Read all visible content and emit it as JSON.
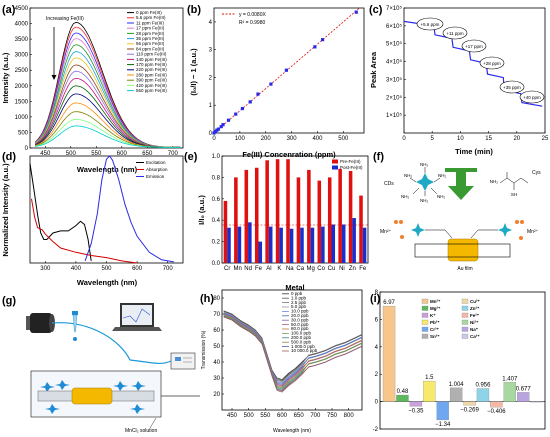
{
  "panels": {
    "a": {
      "label": "(a)",
      "note": "Increasing Fe(III)",
      "xlabel": "Wavelength (nm)",
      "ylabel": "Intensity (a.u.)"
    },
    "b": {
      "label": "(b)",
      "xlabel": "Fe(III) Concenration (ppm)",
      "ylabel": "(I₀/I) − 1 (a.u.)",
      "fit_eq": "y = 0.0080X",
      "r2": "R² = 0.9980",
      "fit_label": "y = 0.0080X"
    },
    "c": {
      "label": "(c)",
      "xlabel": "Time (min)",
      "ylabel": "Peak Area",
      "steps": [
        "+5.6 ppm",
        "+11 ppm",
        "+17 ppm",
        "+28 ppm",
        "+35 ppm",
        "+40 ppm"
      ]
    },
    "d": {
      "label": "(d)",
      "xlabel": "Wavelength (nm)",
      "ylabel": "Normalized Intensity (a.u.)"
    },
    "e": {
      "label": "(e)",
      "xlabel": "Metal",
      "ylabel": "I/I₀ (a.u.)"
    },
    "f": {
      "label": "(f)",
      "cds": "CDs",
      "cys": "Cys",
      "mn": "Mn²⁺",
      "film": "Au film",
      "nh2": "NH₂",
      "sh": "SH"
    },
    "g": {
      "label": "(g)",
      "solution": "MnCl₂ solution"
    },
    "h": {
      "label": "(h)",
      "xlabel": "Wavelength (nm)",
      "ylabel": "Transmission (%)"
    },
    "i": {
      "label": "(i)"
    }
  },
  "chart_data": [
    {
      "panel": "a",
      "type": "line",
      "xlim": [
        420,
        720
      ],
      "ylim": [
        0,
        4500
      ],
      "xticks": [
        450,
        500,
        550,
        600,
        650,
        700
      ],
      "yticks": [
        0,
        500,
        1000,
        1500,
        2000,
        2500,
        3000,
        3500,
        4000,
        4500
      ],
      "peak_nm": 510,
      "series": [
        {
          "name": "0 ppm Fe(III)",
          "peak": 4020,
          "color": "#000000"
        },
        {
          "name": "5.6 ppm Fe(III)",
          "peak": 3870,
          "color": "#ff2a2a"
        },
        {
          "name": "11 ppm Fe(III)",
          "peak": 3680,
          "color": "#2a2aff"
        },
        {
          "name": "17 ppm Fe(III)",
          "peak": 3500,
          "color": "#e07bd8"
        },
        {
          "name": "28 ppm Fe(III)",
          "peak": 3300,
          "color": "#1f9a1f"
        },
        {
          "name": "35 ppm Fe(III)",
          "peak": 3080,
          "color": "#1aa3e8"
        },
        {
          "name": "56 ppm Fe(III)",
          "peak": 2880,
          "color": "#f0c419"
        },
        {
          "name": "84 ppm Fe(III)",
          "peak": 2650,
          "color": "#8b4513"
        },
        {
          "name": "110 ppm Fe(III)",
          "peak": 2450,
          "color": "#9370db"
        },
        {
          "name": "140 ppm Fe(III)",
          "peak": 2220,
          "color": "#c71585"
        },
        {
          "name": "170 ppm Fe(III)",
          "peak": 1980,
          "color": "#006400"
        },
        {
          "name": "220 ppm Fe(III)",
          "peak": 1720,
          "color": "#000080"
        },
        {
          "name": "280 ppm Fe(III)",
          "peak": 1430,
          "color": "#ff8c00"
        },
        {
          "name": "390 ppm Fe(III)",
          "peak": 1150,
          "color": "#808000"
        },
        {
          "name": "420 ppm Fe(III)",
          "peak": 900,
          "color": "#7fff7f"
        },
        {
          "name": "550 ppm Fe(III)",
          "peak": 690,
          "color": "#00ced1"
        }
      ]
    },
    {
      "panel": "b",
      "type": "scatter",
      "xlim": [
        0,
        580
      ],
      "ylim": [
        0,
        4.5
      ],
      "xticks": [
        0,
        100,
        200,
        300,
        400,
        500
      ],
      "yticks": [
        0,
        1,
        2,
        3,
        4
      ],
      "x": [
        0,
        5.6,
        11,
        17,
        28,
        35,
        56,
        84,
        110,
        140,
        170,
        220,
        280,
        390,
        420,
        550
      ],
      "y": [
        0,
        0.05,
        0.1,
        0.14,
        0.23,
        0.3,
        0.46,
        0.68,
        0.88,
        1.12,
        1.4,
        1.76,
        2.26,
        3.1,
        3.36,
        4.35
      ],
      "fit_slope": 0.008
    },
    {
      "panel": "c",
      "type": "line",
      "xlim": [
        0,
        25
      ],
      "ylim": [
        0,
        7
      ],
      "xticks": [
        0,
        5,
        10,
        15,
        20,
        25
      ],
      "yticks": [
        1,
        2,
        3,
        4,
        5,
        6,
        7
      ],
      "ytick_labels": [
        "1×10⁵",
        "2×10⁵",
        "3×10⁵",
        "4×10⁵",
        "5×10⁵",
        "6×10⁵",
        "7×10⁵"
      ],
      "x": [
        0,
        5.3,
        5.5,
        8.5,
        8.7,
        11.6,
        11.8,
        14.6,
        14.8,
        17.6,
        17.8,
        20.7,
        20.9,
        24.5
      ],
      "y": [
        6.25,
        6.0,
        5.5,
        5.3,
        4.8,
        4.6,
        4.1,
        3.9,
        3.3,
        3.1,
        2.4,
        2.2,
        1.7,
        1.5
      ]
    },
    {
      "panel": "d",
      "type": "line",
      "xlim": [
        250,
        750
      ],
      "ylim": [
        0,
        1.0
      ],
      "xticks": [
        300,
        400,
        500,
        600,
        700
      ],
      "series": [
        {
          "name": "Excitation",
          "color": "#000000",
          "x": [
            250,
            262,
            275,
            285,
            295,
            305,
            325,
            350,
            375,
            400,
            415,
            428,
            440,
            450
          ],
          "y": [
            0.93,
            0.7,
            0.45,
            0.28,
            0.22,
            0.22,
            0.28,
            0.3,
            0.3,
            0.35,
            0.39,
            0.36,
            0.22,
            0.02
          ]
        },
        {
          "name": "Absorption",
          "color": "#d40000",
          "x": [
            255,
            265,
            275,
            290,
            300,
            325,
            350,
            400,
            450,
            500,
            550,
            600
          ],
          "y": [
            0.6,
            0.43,
            0.33,
            0.31,
            0.27,
            0.2,
            0.14,
            0.1,
            0.07,
            0.05,
            0.02,
            0.0
          ]
        },
        {
          "name": "Emission",
          "color": "#2a2ae8",
          "x": [
            430,
            450,
            470,
            485,
            500,
            510,
            520,
            540,
            560,
            580,
            600,
            640,
            680,
            720
          ],
          "y": [
            0.02,
            0.18,
            0.46,
            0.78,
            0.97,
            1.0,
            0.96,
            0.78,
            0.55,
            0.38,
            0.25,
            0.1,
            0.03,
            0.01
          ]
        }
      ]
    },
    {
      "panel": "e",
      "type": "bar",
      "ylim": [
        0,
        1.0
      ],
      "yticks": [
        0,
        0.2,
        0.4,
        0.6,
        0.8,
        1.0
      ],
      "categories": [
        "Cr",
        "Mn",
        "Nd",
        "Fe",
        "Al",
        "K",
        "Na",
        "Ca",
        "Mg",
        "Co",
        "Cu",
        "Ni",
        "Zn",
        "Fe"
      ],
      "series": [
        {
          "name": "Pre-Fe(III)",
          "color": "#e01010",
          "values": [
            0.58,
            0.8,
            0.87,
            0.89,
            0.96,
            0.97,
            0.97,
            0.8,
            0.87,
            0.77,
            0.8,
            0.88,
            0.86,
            0.63
          ]
        },
        {
          "name": "Post-Fe(III)",
          "color": "#1a2ecc",
          "values": [
            0.33,
            0.34,
            0.38,
            0.2,
            0.34,
            0.33,
            0.32,
            0.33,
            0.33,
            0.34,
            0.36,
            0.36,
            0.42,
            0.33
          ]
        }
      ]
    },
    {
      "panel": "h",
      "type": "line",
      "xlim": [
        420,
        840
      ],
      "ylim": [
        10,
        85
      ],
      "xticks": [
        450,
        500,
        550,
        600,
        650,
        700,
        750,
        800
      ],
      "yticks": [
        20,
        30,
        40,
        50,
        60,
        70,
        80
      ],
      "series": [
        {
          "name": "0 ppb",
          "offset": 0
        },
        {
          "name": "1.0 ppb",
          "offset": 0.6
        },
        {
          "name": "2.5 ppb",
          "offset": 1.2
        },
        {
          "name": "5.0 ppb",
          "offset": 1.8
        },
        {
          "name": "10.0 ppb",
          "offset": 2.4
        },
        {
          "name": "20.0 ppb",
          "offset": 3.0
        },
        {
          "name": "30.0 ppb",
          "offset": 3.6
        },
        {
          "name": "50.0 ppb",
          "offset": 4.2
        },
        {
          "name": "80.0 ppb",
          "offset": 4.8
        },
        {
          "name": "100.0 ppb",
          "offset": 5.4
        },
        {
          "name": "200.0 ppb",
          "offset": 6.0
        },
        {
          "name": "500.0 ppb",
          "offset": 6.6
        },
        {
          "name": "1 000.0 ppb",
          "offset": 7.2
        },
        {
          "name": "10 000.0 ppb",
          "offset": 7.8
        }
      ],
      "base_x": [
        425,
        450,
        475,
        500,
        520,
        540,
        555,
        570,
        585,
        600,
        620,
        640,
        660,
        680,
        700,
        730,
        760,
        790,
        820,
        840
      ],
      "base_y": [
        72,
        70,
        66,
        63,
        60,
        55,
        45,
        35,
        30,
        29,
        33,
        36,
        40,
        44,
        45,
        47,
        50,
        52,
        55,
        57
      ]
    },
    {
      "panel": "i",
      "type": "bar",
      "ylim": [
        -2,
        8
      ],
      "yticks": [
        -2,
        0,
        2,
        4,
        6,
        8
      ],
      "categories": [
        "Mn²⁺",
        "Mg²⁺",
        "K⁺",
        "Pb²⁺",
        "Cr³⁺",
        "Sn²⁺",
        "Cu²⁺",
        "Zn²⁺",
        "Fe²⁺",
        "Ni²⁺",
        "Na⁺",
        "Ca²⁺"
      ],
      "values": [
        6.97,
        0.48,
        -0.35,
        1.5,
        -1.34,
        1.004,
        -0.269,
        0.956,
        -0.406,
        1.407,
        0.677,
        0.0
      ],
      "value_labels": [
        "6.97",
        "0.48",
        "−0.35",
        "1.5",
        "−1.34",
        "1.004",
        "−0.269",
        "0.956",
        "−0.406",
        "1.407",
        "0.677",
        ""
      ],
      "colors": [
        "#f6c68a",
        "#5cb85c",
        "#c9a0dc",
        "#f7e96b",
        "#6fa8f0",
        "#b0b0b0",
        "#f2d7a6",
        "#8fd3e8",
        "#f5b8a6",
        "#a8d8a0",
        "#b9a4e0",
        "#c8c8e8"
      ]
    }
  ]
}
